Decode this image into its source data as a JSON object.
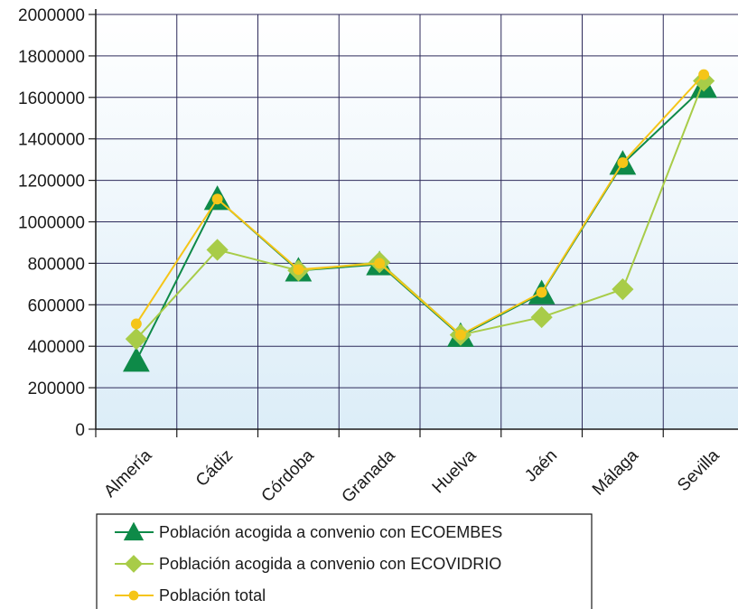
{
  "chart_data": {
    "type": "line",
    "categories": [
      "Almería",
      "Cádiz",
      "Córdoba",
      "Granada",
      "Huelva",
      "Jaén",
      "Málaga",
      "Sevilla"
    ],
    "y_ticks": [
      "0",
      "200000",
      "400000",
      "600000",
      "800000",
      "1000000",
      "1200000",
      "1400000",
      "1600000",
      "1800000",
      "2000000"
    ],
    "ylim": [
      0,
      2000000
    ],
    "grid": true,
    "legend_position": "bottom",
    "series": [
      {
        "name": "Población acogida a convenio con ECOEMBES",
        "marker": "triangle",
        "color": "#0e8a48",
        "values": [
          330000,
          1110000,
          765000,
          795000,
          450000,
          655000,
          1280000,
          1650000
        ]
      },
      {
        "name": "Población acogida a convenio con ECOVIDRIO",
        "marker": "diamond",
        "color": "#a8cc48",
        "values": [
          435000,
          865000,
          765000,
          805000,
          455000,
          540000,
          675000,
          1680000
        ]
      },
      {
        "name": "Población total",
        "marker": "circle",
        "color": "#f5c518",
        "values": [
          508000,
          1110000,
          770000,
          800000,
          455000,
          660000,
          1285000,
          1710000
        ]
      }
    ]
  }
}
